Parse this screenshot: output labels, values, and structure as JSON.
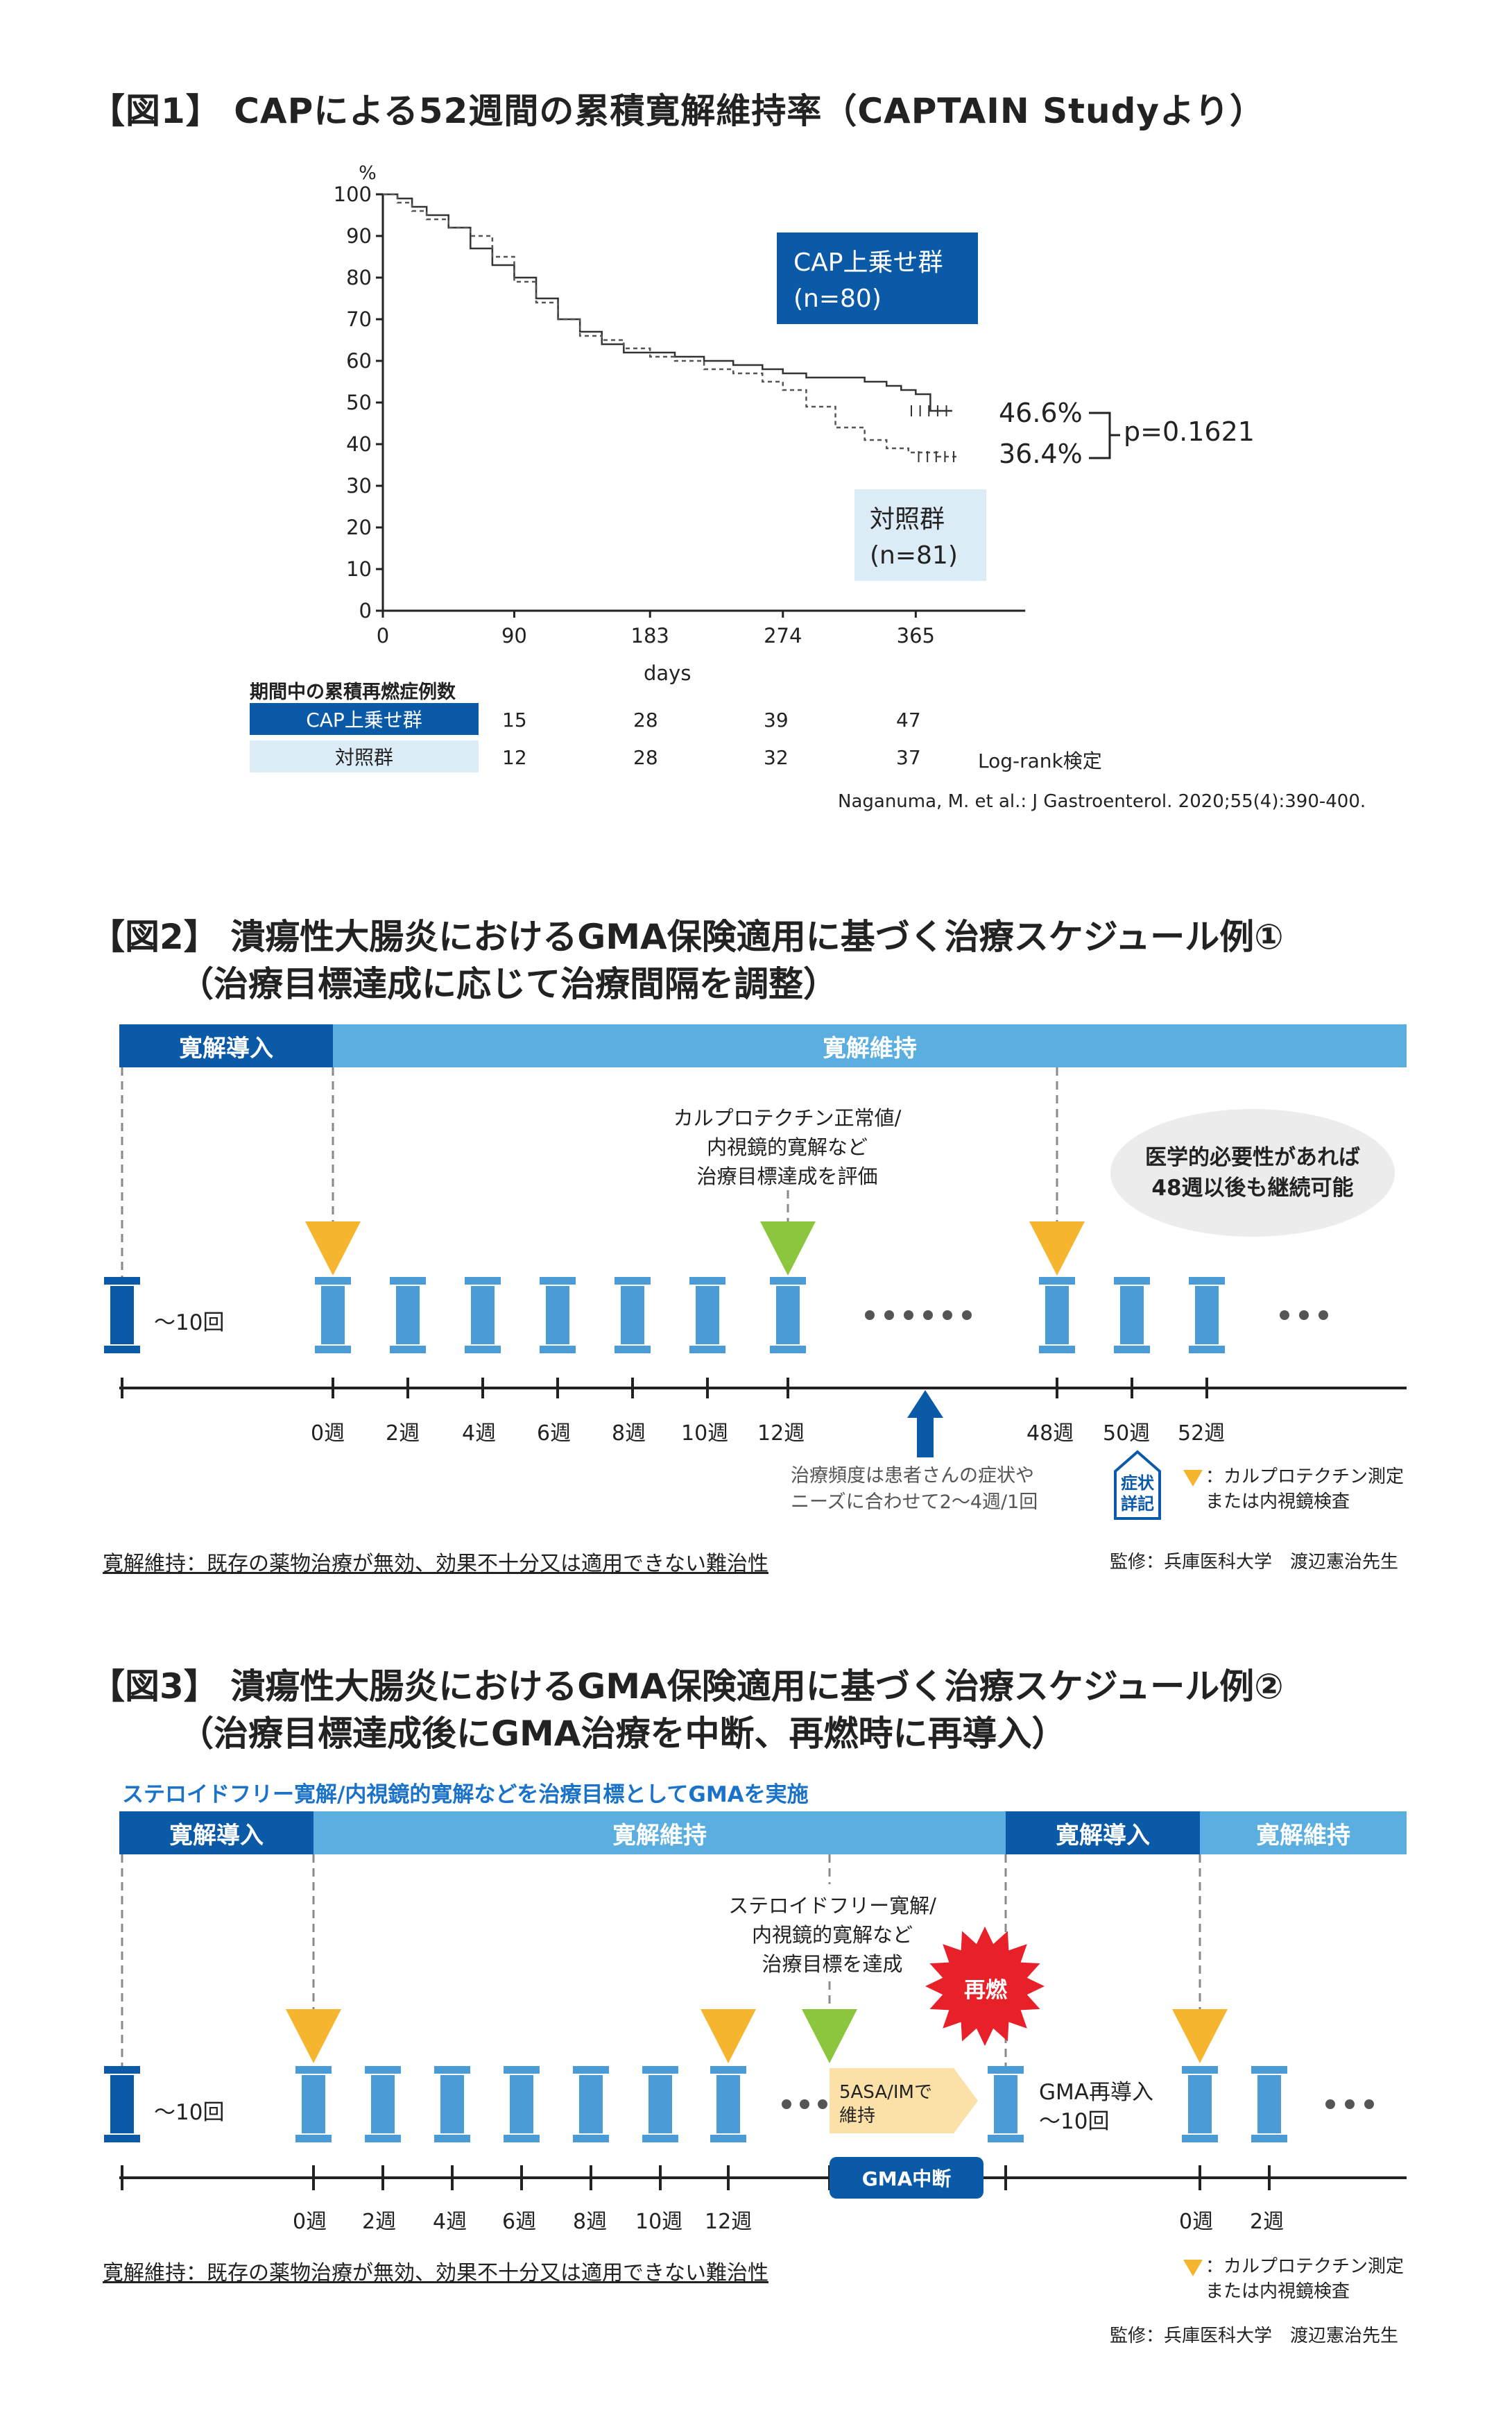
{
  "fig1": {
    "title": "【図1】 CAPによる52週間の累積寛解維持率（CAPTAIN Studyより）",
    "legend_cap": [
      "CAP上乗せ群",
      "(n=80)"
    ],
    "legend_ctrl": [
      "対照群",
      "(n=81)"
    ],
    "val_cap": "46.6%",
    "val_ctrl": "36.4%",
    "pvalue": "p=0.1621",
    "table_header": "期間中の累積再燃症例数",
    "table_rows": [
      {
        "label": "CAP上乗せ群",
        "values": [
          "15",
          "28",
          "39",
          "47"
        ]
      },
      {
        "label": "対照群",
        "values": [
          "12",
          "28",
          "32",
          "37"
        ]
      }
    ],
    "logrank": "Log-rank検定",
    "citation": "Naganuma, M. et al.: J Gastroenterol. 2020;55(4):390-400."
  },
  "chart_data": {
    "type": "line",
    "xlabel": "days",
    "ylabel": "%",
    "xlim": [
      0,
      440
    ],
    "ylim": [
      0,
      100
    ],
    "xticks": [
      0,
      90,
      183,
      274,
      365
    ],
    "yticks": [
      0,
      10,
      20,
      30,
      40,
      50,
      60,
      70,
      80,
      90,
      100
    ],
    "series": [
      {
        "name": "CAP上乗せ群",
        "style": "solid",
        "x": [
          0,
          10,
          20,
          30,
          45,
          60,
          75,
          90,
          105,
          120,
          135,
          150,
          165,
          183,
          200,
          220,
          240,
          260,
          274,
          290,
          310,
          330,
          345,
          355,
          365,
          375,
          390
        ],
        "y": [
          100,
          99,
          97,
          95,
          92,
          87,
          83,
          80,
          75,
          70,
          67,
          64,
          62,
          62,
          61,
          60,
          59,
          58,
          57,
          56,
          56,
          55,
          54,
          53,
          52,
          48,
          48
        ]
      },
      {
        "name": "対照群",
        "style": "dashed",
        "x": [
          0,
          10,
          20,
          30,
          45,
          60,
          75,
          90,
          105,
          120,
          135,
          150,
          165,
          183,
          200,
          220,
          240,
          260,
          274,
          290,
          310,
          330,
          345,
          360,
          380,
          395
        ],
        "y": [
          100,
          98,
          96,
          94,
          92,
          90,
          85,
          79,
          74,
          70,
          66,
          65,
          63,
          61,
          60,
          58,
          57,
          55,
          53,
          49,
          44,
          41,
          39,
          38,
          37,
          37
        ]
      }
    ]
  },
  "fig2": {
    "title1": "【図2】 潰瘍性大腸炎におけるGMA保険適用に基づく治療スケジュール例①",
    "title2": "（治療目標達成に応じて治療間隔を調整）",
    "bar_induction": "寛解導入",
    "bar_maintenance": "寛解維持",
    "callout": [
      "カルプロテクチン正常値/",
      "内視鏡的寛解など",
      "治療目標達成を評価"
    ],
    "cloud": [
      "医学的必要性があれば",
      "48週以後も継続可能"
    ],
    "induction_count": "～10回",
    "weeks": [
      "0週",
      "2週",
      "4週",
      "6週",
      "8週",
      "10週",
      "12週",
      "48週",
      "50週",
      "52週"
    ],
    "freq_note": [
      "治療頻度は患者さんの症状や",
      "ニーズに合わせて2～4週/1回"
    ],
    "house": [
      "症状",
      "詳記"
    ],
    "legend": [
      "：カルプロテクチン測定",
      "または内視鏡検査"
    ],
    "footnote": "寛解維持：既存の薬物治療が無効、効果不十分又は適用できない難治性",
    "supervisor": "監修：兵庫医科大学　渡辺憲治先生"
  },
  "fig3": {
    "title1": "【図3】 潰瘍性大腸炎におけるGMA保険適用に基づく治療スケジュール例②",
    "title2": "（治療目標達成後にGMA治療を中断、再燃時に再導入）",
    "banner": "ステロイドフリー寛解/内視鏡的寛解などを治療目標としてGMAを実施",
    "bars": [
      "寛解導入",
      "寛解維持",
      "寛解導入",
      "寛解維持"
    ],
    "callout": [
      "ステロイドフリー寛解/",
      "内視鏡的寛解など",
      "治療目標を達成"
    ],
    "relapse": "再燃",
    "arrow_text": [
      "5ASA/IMで",
      "維持"
    ],
    "suspend": "GMA中断",
    "induction_count": "～10回",
    "reinduction": [
      "GMA再導入",
      "～10回"
    ],
    "weeks": [
      "0週",
      "2週",
      "4週",
      "6週",
      "8週",
      "10週",
      "12週",
      "0週",
      "2週"
    ],
    "legend": [
      "：カルプロテクチン測定",
      "または内視鏡検査"
    ],
    "footnote": "寛解維持：既存の薬物治療が無効、効果不十分又は適用できない難治性",
    "supervisor": "監修：兵庫医科大学　渡辺憲治先生"
  },
  "colors": {
    "dark_blue": "#0a5aa8",
    "light_blue": "#5aaee0",
    "column_blue": "#4a9bd6",
    "orange": "#f5b52e",
    "green": "#8cc63f",
    "red": "#e8202a",
    "pale_blue": "#dcecf7",
    "cloud_gray": "#ececec"
  }
}
